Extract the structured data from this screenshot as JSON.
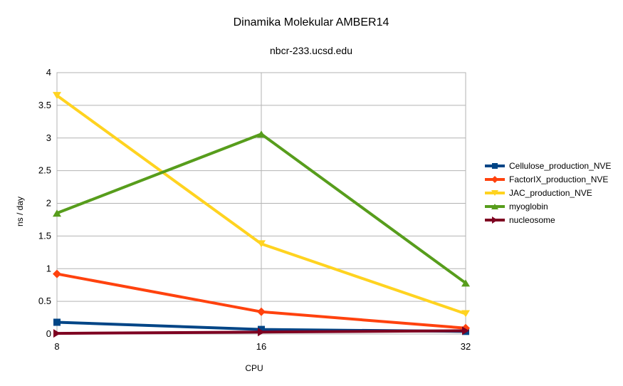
{
  "chart_data": {
    "type": "line",
    "title": "Dinamika Molekular AMBER14",
    "subtitle": "nbcr-233.ucsd.edu",
    "xlabel": "CPU",
    "ylabel": "ns / day",
    "categories": [
      "8",
      "16",
      "32"
    ],
    "ylim": [
      0,
      4
    ],
    "yticks": [
      "0",
      "0.5",
      "1",
      "1.5",
      "2",
      "2.5",
      "3",
      "3.5",
      "4"
    ],
    "grid": true,
    "legend_position": "right",
    "series": [
      {
        "name": "Cellulose_production_NVE",
        "color": "#004586",
        "marker": "square",
        "values": [
          0.18,
          0.07,
          0.04
        ]
      },
      {
        "name": "FactorIX_production_NVE",
        "color": "#ff420e",
        "marker": "diamond",
        "values": [
          0.92,
          0.34,
          0.09
        ]
      },
      {
        "name": "JAC_production_NVE",
        "color": "#ffd320",
        "marker": "triangle-down",
        "values": [
          3.65,
          1.38,
          0.31
        ]
      },
      {
        "name": "myoglobin",
        "color": "#579d1c",
        "marker": "triangle-up",
        "values": [
          1.85,
          3.06,
          0.78
        ]
      },
      {
        "name": "nucleosome",
        "color": "#7e0021",
        "marker": "triangle-right",
        "values": [
          0.01,
          0.03,
          0.05
        ]
      }
    ]
  }
}
